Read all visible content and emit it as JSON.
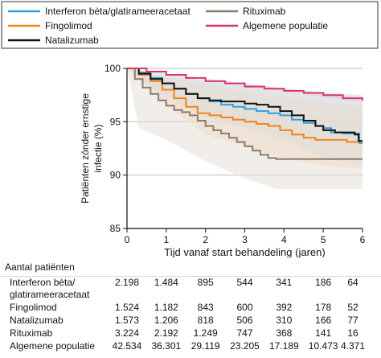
{
  "chart_data": {
    "type": "line",
    "xlabel": "Tijd vanaf start behandeling (jaren)",
    "ylabel": "Patiënten zónder ernstige infectie (%)",
    "xlim": [
      0,
      6
    ],
    "ylim": [
      85,
      100
    ],
    "x_ticks": [
      "0",
      "1",
      "2",
      "3",
      "4",
      "5",
      "6"
    ],
    "y_ticks": [
      "85",
      "90",
      "95",
      "100"
    ],
    "grid": "horizontal",
    "legend_position": "top",
    "series": [
      {
        "name": "Interferon bèta/glatirameeracetaat",
        "color": "#29a3dd",
        "ci_color": "#cfe3f2",
        "points": [
          [
            0,
            100
          ],
          [
            0.3,
            99.6
          ],
          [
            0.6,
            99.1
          ],
          [
            0.9,
            98.6
          ],
          [
            1.2,
            98.1
          ],
          [
            1.5,
            97.6
          ],
          [
            1.8,
            97.2
          ],
          [
            2.1,
            96.9
          ],
          [
            2.4,
            96.6
          ],
          [
            2.7,
            96.4
          ],
          [
            3,
            96.2
          ],
          [
            3.3,
            96
          ],
          [
            3.6,
            95.8
          ],
          [
            3.9,
            95.6
          ],
          [
            4.2,
            95.2
          ],
          [
            4.5,
            94.9
          ],
          [
            4.8,
            94.6
          ],
          [
            5,
            94.4
          ],
          [
            5.2,
            94.0
          ],
          [
            5.5,
            93.9
          ],
          [
            5.9,
            93.9
          ],
          [
            5.92,
            93.0
          ],
          [
            6,
            93.0
          ]
        ],
        "ci_upper": [
          [
            0,
            100
          ],
          [
            1,
            99.5
          ],
          [
            2,
            98.8
          ],
          [
            3,
            98.5
          ],
          [
            4,
            98
          ],
          [
            5,
            97.8
          ],
          [
            6,
            97.5
          ]
        ],
        "ci_lower": [
          [
            0,
            100
          ],
          [
            1,
            97.2
          ],
          [
            2,
            95.4
          ],
          [
            3,
            94.4
          ],
          [
            4,
            93.3
          ],
          [
            5,
            92.6
          ],
          [
            5.9,
            92.2
          ],
          [
            6,
            91.0
          ]
        ]
      },
      {
        "name": "Fingolimod",
        "color": "#f0841d",
        "ci_color": "#f7d8b9",
        "points": [
          [
            0,
            100
          ],
          [
            0.3,
            99.4
          ],
          [
            0.6,
            98.8
          ],
          [
            0.9,
            98.0
          ],
          [
            1.2,
            97.2
          ],
          [
            1.5,
            96.4
          ],
          [
            1.8,
            95.8
          ],
          [
            2.1,
            95.6
          ],
          [
            2.4,
            95.4
          ],
          [
            2.7,
            95.2
          ],
          [
            3,
            95.0
          ],
          [
            3.3,
            94.8
          ],
          [
            3.6,
            94.6
          ],
          [
            3.9,
            94.2
          ],
          [
            4.2,
            93.8
          ],
          [
            4.5,
            93.5
          ],
          [
            4.8,
            93.3
          ],
          [
            5,
            93.3
          ],
          [
            5.6,
            93.3
          ],
          [
            5.6,
            93.1
          ],
          [
            6,
            93.1
          ]
        ],
        "ci_upper": [
          [
            0,
            100
          ],
          [
            1,
            99.2
          ],
          [
            2,
            98.5
          ],
          [
            3,
            97.9
          ],
          [
            4,
            97.4
          ],
          [
            5,
            96.8
          ],
          [
            6,
            96.5
          ]
        ],
        "ci_lower": [
          [
            0,
            100
          ],
          [
            1,
            96.6
          ],
          [
            2,
            93.8
          ],
          [
            3,
            92.7
          ],
          [
            4,
            91.6
          ],
          [
            5,
            90.9
          ],
          [
            6,
            90.6
          ]
        ]
      },
      {
        "name": "Natalizumab",
        "color": "#111111",
        "ci_color": "#dedede",
        "points": [
          [
            0,
            100
          ],
          [
            0.3,
            99.5
          ],
          [
            0.6,
            99.0
          ],
          [
            0.9,
            98.6
          ],
          [
            1.2,
            98.1
          ],
          [
            1.5,
            97.6
          ],
          [
            1.8,
            97.2
          ],
          [
            2.1,
            97.0
          ],
          [
            2.4,
            96.9
          ],
          [
            2.7,
            96.9
          ],
          [
            3,
            96.7
          ],
          [
            3.3,
            96.6
          ],
          [
            3.6,
            96.4
          ],
          [
            3.9,
            96.0
          ],
          [
            4.2,
            95.6
          ],
          [
            4.5,
            95.1
          ],
          [
            4.8,
            94.6
          ],
          [
            5,
            94.2
          ],
          [
            5.3,
            94.0
          ],
          [
            5.8,
            93.8
          ],
          [
            5.9,
            93.8
          ],
          [
            5.9,
            93.2
          ],
          [
            6,
            93.2
          ]
        ],
        "ci_upper": [
          [
            0,
            100
          ],
          [
            1,
            99.4
          ],
          [
            2,
            98.9
          ],
          [
            3,
            98.5
          ],
          [
            4,
            98.1
          ],
          [
            5,
            97.6
          ],
          [
            6,
            97.4
          ]
        ],
        "ci_lower": [
          [
            0,
            100
          ],
          [
            1,
            97.4
          ],
          [
            2,
            95.5
          ],
          [
            3,
            94.5
          ],
          [
            4,
            93.3
          ],
          [
            5,
            91.6
          ],
          [
            6,
            91.0
          ]
        ]
      },
      {
        "name": "Rituximab",
        "color": "#8c7b6b",
        "ci_color": "#e6ded6",
        "points": [
          [
            0,
            100
          ],
          [
            0.2,
            99.0
          ],
          [
            0.4,
            98.2
          ],
          [
            0.6,
            97.6
          ],
          [
            0.8,
            97.0
          ],
          [
            1.0,
            96.5
          ],
          [
            1.2,
            96.1
          ],
          [
            1.4,
            95.9
          ],
          [
            1.6,
            95.6
          ],
          [
            1.8,
            95.1
          ],
          [
            2.0,
            94.6
          ],
          [
            2.2,
            94.2
          ],
          [
            2.4,
            93.9
          ],
          [
            2.6,
            93.5
          ],
          [
            2.8,
            93.1
          ],
          [
            3.0,
            92.7
          ],
          [
            3.2,
            92.3
          ],
          [
            3.4,
            91.9
          ],
          [
            3.6,
            91.6
          ],
          [
            3.8,
            91.5
          ],
          [
            4.2,
            91.5
          ],
          [
            5,
            91.5
          ],
          [
            6,
            91.5
          ]
        ],
        "ci_upper": [
          [
            0,
            100
          ],
          [
            0.5,
            99.4
          ],
          [
            1,
            98.8
          ],
          [
            2,
            97.6
          ],
          [
            3,
            96.5
          ],
          [
            4,
            95.9
          ],
          [
            5,
            95.3
          ],
          [
            6,
            95.0
          ]
        ],
        "ci_lower": [
          [
            0,
            100
          ],
          [
            0.3,
            94.4
          ],
          [
            1,
            93.3
          ],
          [
            2,
            91.3
          ],
          [
            3,
            89.7
          ],
          [
            3.8,
            88.7
          ],
          [
            6,
            88.7
          ]
        ]
      },
      {
        "name": "Algemene populatie",
        "color": "#d8356f",
        "ci_color": "#f4c9d6",
        "points": [
          [
            0,
            100
          ],
          [
            0.5,
            99.7
          ],
          [
            1,
            99.4
          ],
          [
            1.5,
            99.1
          ],
          [
            2,
            98.8
          ],
          [
            2.5,
            98.6
          ],
          [
            3,
            98.3
          ],
          [
            3.5,
            98.1
          ],
          [
            4,
            97.9
          ],
          [
            4.5,
            97.7
          ],
          [
            5,
            97.5
          ],
          [
            5.5,
            97.2
          ],
          [
            6,
            97.0
          ]
        ],
        "ci_upper": [
          [
            0,
            100
          ],
          [
            6,
            97.2
          ]
        ],
        "ci_lower": [
          [
            0,
            100
          ],
          [
            6,
            96.8
          ]
        ]
      }
    ]
  },
  "table": {
    "header": "Aantal patiënten",
    "rows": [
      {
        "label_lines": [
          "Interferon bèta/",
          "glatirameeracetaat"
        ],
        "values": [
          "2.198",
          "1.484",
          "895",
          "544",
          "341",
          "186",
          "64"
        ]
      },
      {
        "label_lines": [
          "Fingolimod"
        ],
        "values": [
          "1.524",
          "1.182",
          "843",
          "600",
          "392",
          "178",
          "52"
        ]
      },
      {
        "label_lines": [
          "Natalizumab"
        ],
        "values": [
          "1.573",
          "1.206",
          "818",
          "506",
          "310",
          "166",
          "77"
        ]
      },
      {
        "label_lines": [
          "Rituximab"
        ],
        "values": [
          "3.224",
          "2.192",
          "1.249",
          "747",
          "368",
          "141",
          "16"
        ]
      },
      {
        "label_lines": [
          "Algemene populatie"
        ],
        "values": [
          "42.534",
          "36.301",
          "29.119",
          "23.205",
          "17.189",
          "10.473",
          "4.371"
        ]
      }
    ]
  }
}
